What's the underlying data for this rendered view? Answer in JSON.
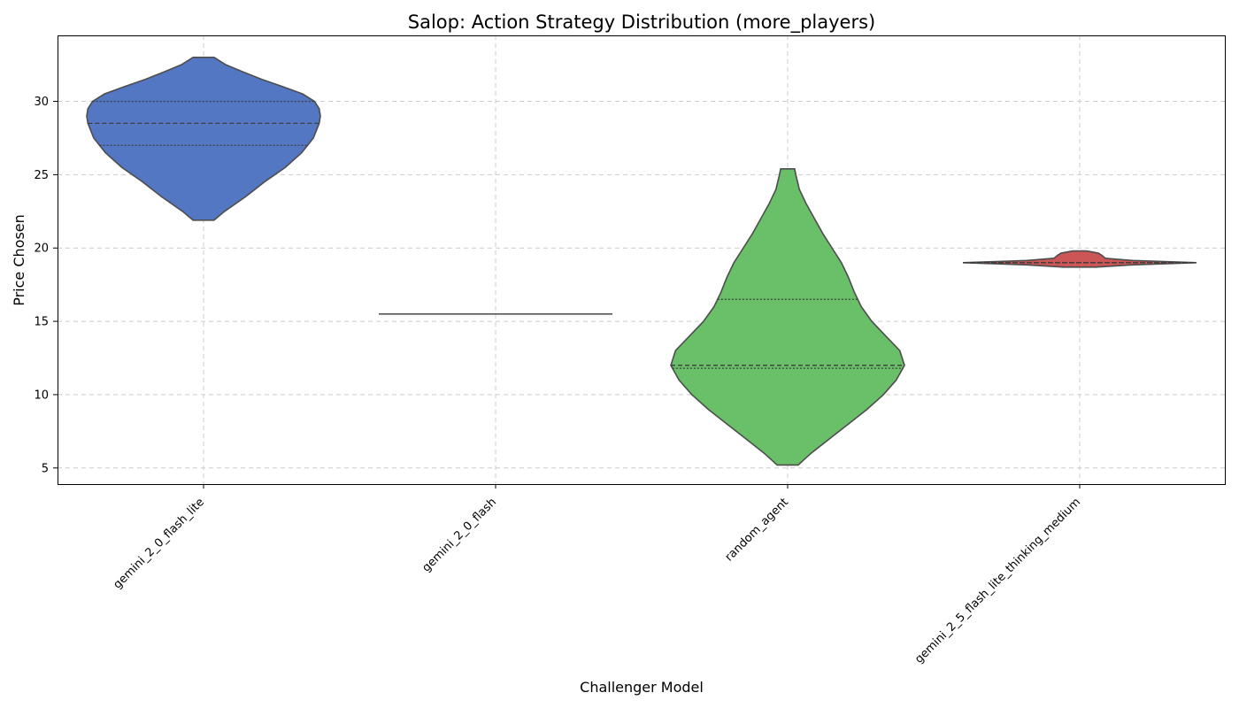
{
  "chart_data": {
    "type": "violin",
    "title": "Salop: Action Strategy Distribution (more_players)",
    "xlabel": "Challenger Model",
    "ylabel": "Price Chosen",
    "ylim": [
      3.9,
      34.5
    ],
    "yticks": [
      5,
      10,
      15,
      20,
      25,
      30
    ],
    "grid": true,
    "categories": [
      "gemini_2_0_flash_lite",
      "gemini_2_0_flash",
      "random_agent",
      "gemini_2_5_flash_lite_thinking_medium"
    ],
    "colors": [
      "#5477c4",
      "#5477c4",
      "#6abf69",
      "#cc5555"
    ],
    "violins": [
      {
        "category": "gemini_2_0_flash_lite",
        "min": 21.9,
        "max": 33.0,
        "q1": 27.0,
        "median": 28.5,
        "q3": 30.0,
        "density": [
          [
            21.9,
            0.09
          ],
          [
            22.5,
            0.18
          ],
          [
            23.5,
            0.36
          ],
          [
            24.5,
            0.52
          ],
          [
            25.5,
            0.7
          ],
          [
            26.5,
            0.84
          ],
          [
            27.5,
            0.94
          ],
          [
            28.5,
            0.99
          ],
          [
            29.0,
            1.0
          ],
          [
            29.5,
            0.99
          ],
          [
            30.0,
            0.95
          ],
          [
            30.5,
            0.85
          ],
          [
            31.0,
            0.68
          ],
          [
            31.5,
            0.5
          ],
          [
            32.0,
            0.34
          ],
          [
            32.5,
            0.19
          ],
          [
            33.0,
            0.09
          ]
        ]
      },
      {
        "category": "gemini_2_0_flash",
        "min": 15.5,
        "max": 15.5,
        "q1": 15.5,
        "median": 15.5,
        "q3": 15.5,
        "density": [
          [
            15.5,
            1.0
          ]
        ]
      },
      {
        "category": "random_agent",
        "min": 5.2,
        "max": 25.4,
        "q1": 11.8,
        "median": 12.0,
        "q3": 16.5,
        "density": [
          [
            5.2,
            0.09
          ],
          [
            6.0,
            0.2
          ],
          [
            7.0,
            0.36
          ],
          [
            8.0,
            0.52
          ],
          [
            9.0,
            0.68
          ],
          [
            10.0,
            0.82
          ],
          [
            11.0,
            0.93
          ],
          [
            12.0,
            1.0
          ],
          [
            13.0,
            0.96
          ],
          [
            14.0,
            0.84
          ],
          [
            15.0,
            0.72
          ],
          [
            16.0,
            0.63
          ],
          [
            17.0,
            0.57
          ],
          [
            18.0,
            0.52
          ],
          [
            19.0,
            0.46
          ],
          [
            20.0,
            0.38
          ],
          [
            21.0,
            0.3
          ],
          [
            22.0,
            0.23
          ],
          [
            23.0,
            0.16
          ],
          [
            24.0,
            0.1
          ],
          [
            25.0,
            0.07
          ],
          [
            25.4,
            0.06
          ]
        ]
      },
      {
        "category": "gemini_2_5_flash_lite_thinking_medium",
        "min": 18.7,
        "max": 19.8,
        "q1": 19.0,
        "median": 19.0,
        "q3": 19.0,
        "density": [
          [
            18.7,
            0.14
          ],
          [
            18.85,
            0.45
          ],
          [
            19.0,
            1.0
          ],
          [
            19.15,
            0.45
          ],
          [
            19.3,
            0.22
          ],
          [
            19.5,
            0.19
          ],
          [
            19.65,
            0.16
          ],
          [
            19.8,
            0.06
          ]
        ]
      }
    ]
  }
}
